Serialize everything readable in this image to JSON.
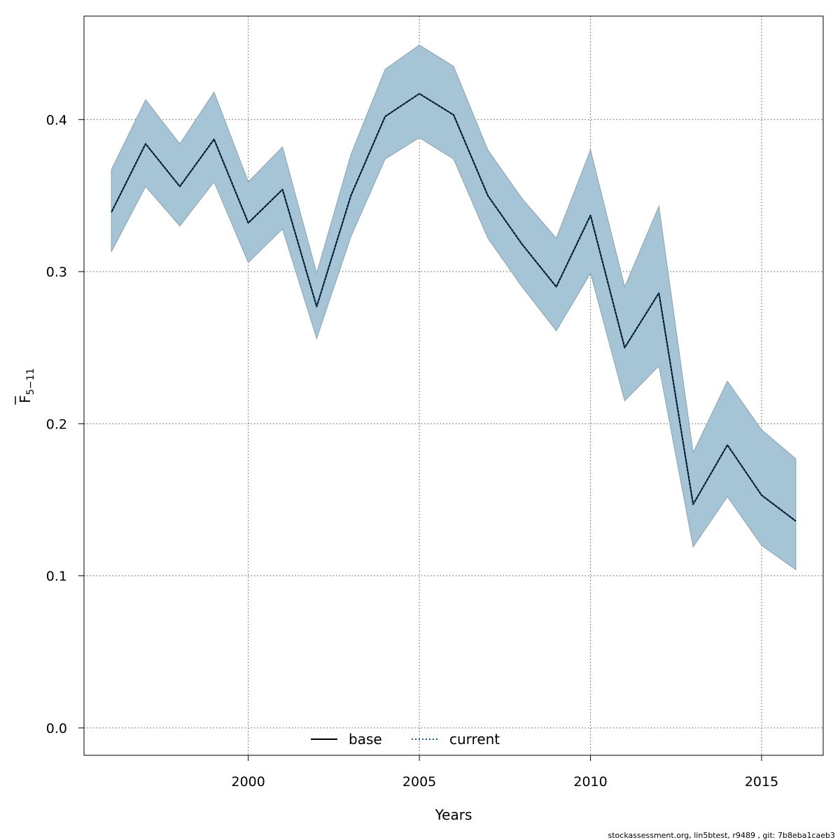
{
  "chart_data": {
    "type": "line",
    "xlabel": "Years",
    "ylabel_main": "F",
    "ylabel_sub": "5−11",
    "xlim": [
      1995.2,
      2016.8
    ],
    "ylim": [
      -0.018,
      0.468
    ],
    "x_ticks": [
      2000,
      2005,
      2010,
      2015
    ],
    "x_tick_labels": [
      "2000",
      "2005",
      "2010",
      "2015"
    ],
    "y_ticks": [
      0.0,
      0.1,
      0.2,
      0.3,
      0.4
    ],
    "y_tick_labels": [
      "0.0",
      "0.1",
      "0.2",
      "0.3",
      "0.4"
    ],
    "grid": true,
    "legend_position": "bottom-center",
    "x": [
      1996,
      1997,
      1998,
      1999,
      2000,
      2001,
      2002,
      2003,
      2004,
      2005,
      2006,
      2007,
      2008,
      2009,
      2010,
      2011,
      2012,
      2013,
      2014,
      2015,
      2016
    ],
    "band": {
      "fill_color": "#a5c5d7",
      "edge_color": "#8aa2af",
      "upper": [
        0.367,
        0.413,
        0.384,
        0.418,
        0.359,
        0.382,
        0.299,
        0.377,
        0.433,
        0.449,
        0.435,
        0.38,
        0.348,
        0.322,
        0.38,
        0.29,
        0.343,
        0.181,
        0.228,
        0.196,
        0.177
      ],
      "lower": [
        0.313,
        0.356,
        0.33,
        0.359,
        0.306,
        0.328,
        0.256,
        0.323,
        0.374,
        0.388,
        0.374,
        0.322,
        0.29,
        0.261,
        0.299,
        0.215,
        0.238,
        0.119,
        0.152,
        0.12,
        0.104
      ]
    },
    "series": [
      {
        "name": "base",
        "color": "#000000",
        "dash": "solid",
        "values": [
          0.339,
          0.384,
          0.356,
          0.387,
          0.332,
          0.354,
          0.277,
          0.35,
          0.402,
          0.417,
          0.403,
          0.35,
          0.318,
          0.29,
          0.337,
          0.25,
          0.286,
          0.147,
          0.186,
          0.153,
          0.136
        ]
      },
      {
        "name": "current",
        "color": "#0b5e9a",
        "dash": "dotted",
        "values": [
          0.339,
          0.384,
          0.356,
          0.387,
          0.332,
          0.354,
          0.277,
          0.35,
          0.402,
          0.417,
          0.403,
          0.35,
          0.318,
          0.29,
          0.337,
          0.25,
          0.286,
          0.147,
          0.186,
          0.153,
          0.136
        ]
      }
    ]
  },
  "footer_text": "stockassessment.org, lin5btest, r9489 , git: 7b8eba1caeb3"
}
